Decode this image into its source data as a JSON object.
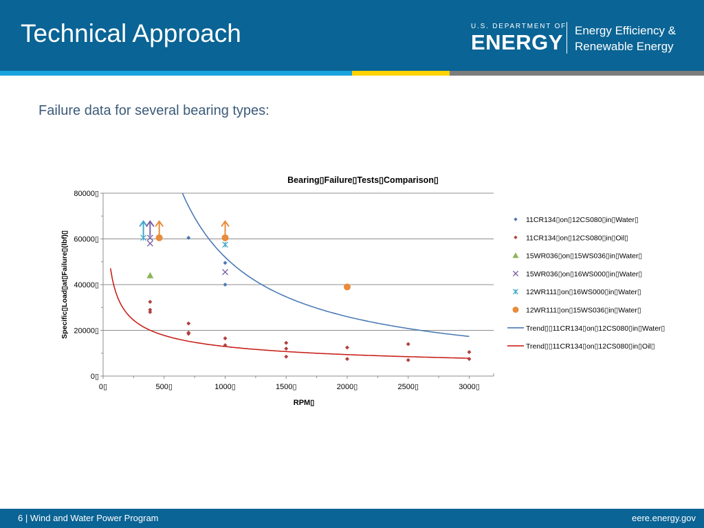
{
  "slide": {
    "title": "Technical Approach",
    "subtitle": "Failure data for several bearing types:"
  },
  "header": {
    "doe_small": "U.S. DEPARTMENT OF",
    "doe_big": "ENERGY",
    "eere_line1": "Energy Efficiency &",
    "eere_line2": "Renewable Energy"
  },
  "footer": {
    "page_number": "6",
    "separator": "|",
    "program": "Wind and Water Power Program",
    "url": "eere.energy.gov"
  },
  "colors": {
    "header_bg": "#0a6495",
    "stripe_blue": "#1aa3dd",
    "stripe_yellow": "#ffd200",
    "stripe_gray": "#7d7d7d"
  },
  "chart_data": {
    "type": "scatter",
    "title": "Bearing▯Failure▯Tests▯Comparison▯",
    "xlabel": "RPM▯",
    "ylabel": "Specific▯Load▯at▯Failure▯(lbf)▯",
    "xlim": [
      0,
      3200
    ],
    "ylim": [
      0,
      80000
    ],
    "xticks": [
      0,
      500,
      1000,
      1500,
      2000,
      2500,
      3000
    ],
    "xtick_labels": [
      "0▯",
      "500▯",
      "1000▯",
      "1500▯",
      "2000▯",
      "2500▯",
      "3000▯"
    ],
    "yticks": [
      0,
      20000,
      40000,
      60000,
      80000
    ],
    "ytick_labels": [
      "0▯",
      "20000▯",
      "40000▯",
      "60000▯",
      "80000▯"
    ],
    "grid": "horizontal",
    "legend": "right",
    "series": [
      {
        "name": "11CR134▯on▯12CS080▯in▯Water▯",
        "marker": "diamond",
        "color": "#4a7ab5",
        "points": [
          [
            700,
            60500
          ],
          [
            1000,
            49500
          ],
          [
            1000,
            40000
          ]
        ]
      },
      {
        "name": "11CR134▯on▯12CS080▯in▯Oil▯",
        "marker": "diamond",
        "color": "#b0413e",
        "points": [
          [
            385,
            32500
          ],
          [
            385,
            29000
          ],
          [
            385,
            28000
          ],
          [
            700,
            23000
          ],
          [
            700,
            19000
          ],
          [
            700,
            18500
          ],
          [
            1000,
            16500
          ],
          [
            1000,
            13500
          ],
          [
            1500,
            14500
          ],
          [
            1500,
            12000
          ],
          [
            1500,
            8500
          ],
          [
            2000,
            12500
          ],
          [
            2000,
            7500
          ],
          [
            2500,
            14000
          ],
          [
            2500,
            7000
          ],
          [
            3000,
            10500
          ],
          [
            3000,
            7500
          ]
        ]
      },
      {
        "name": "15WR036▯on▯15WS036▯in▯Water▯",
        "marker": "triangle",
        "color": "#8db55a",
        "points": [
          [
            385,
            44000
          ]
        ]
      },
      {
        "name": "15WR036▯on▯16WS000▯in▯Water▯",
        "marker": "x",
        "color": "#7b62a6",
        "points": [
          [
            385,
            60500
          ],
          [
            385,
            58000
          ],
          [
            1000,
            45500
          ]
        ]
      },
      {
        "name": "12WR111▯on▯16WS000▯in▯Water▯",
        "marker": "asterisk",
        "color": "#3fa7c7",
        "points": [
          [
            330,
            60500
          ],
          [
            1000,
            57500
          ]
        ]
      },
      {
        "name": "12WR111▯on▯15WS036▯in▯Water▯",
        "marker": "circle",
        "color": "#e88b3c",
        "points": [
          [
            460,
            60500
          ],
          [
            1000,
            60500
          ],
          [
            2000,
            39000
          ]
        ]
      }
    ],
    "trends": [
      {
        "name": "Trend▯▯11CR134▯on▯12CS080▯in▯Water▯",
        "color": "#4a7ab5",
        "form": "y = 52000000 / x",
        "coef": 52000000,
        "x_range": [
          650,
          3000
        ]
      },
      {
        "name": "Trend▯▯11CR134▯on▯12CS080▯in▯Oil▯",
        "color": "#c8201a",
        "form": "y = 310000 * x^-0.46",
        "coef": 310000,
        "exp": -0.46,
        "x_range": [
          60,
          3000
        ]
      }
    ],
    "annotations": [
      {
        "type": "arrow-up",
        "x": 330,
        "y": 60500,
        "color": "#3fa7c7"
      },
      {
        "type": "arrow-up",
        "x": 385,
        "y": 60500,
        "color": "#7b62a6"
      },
      {
        "type": "arrow-up",
        "x": 460,
        "y": 60500,
        "color": "#e88b3c"
      },
      {
        "type": "arrow-up",
        "x": 1000,
        "y": 60500,
        "color": "#e88b3c"
      }
    ]
  }
}
